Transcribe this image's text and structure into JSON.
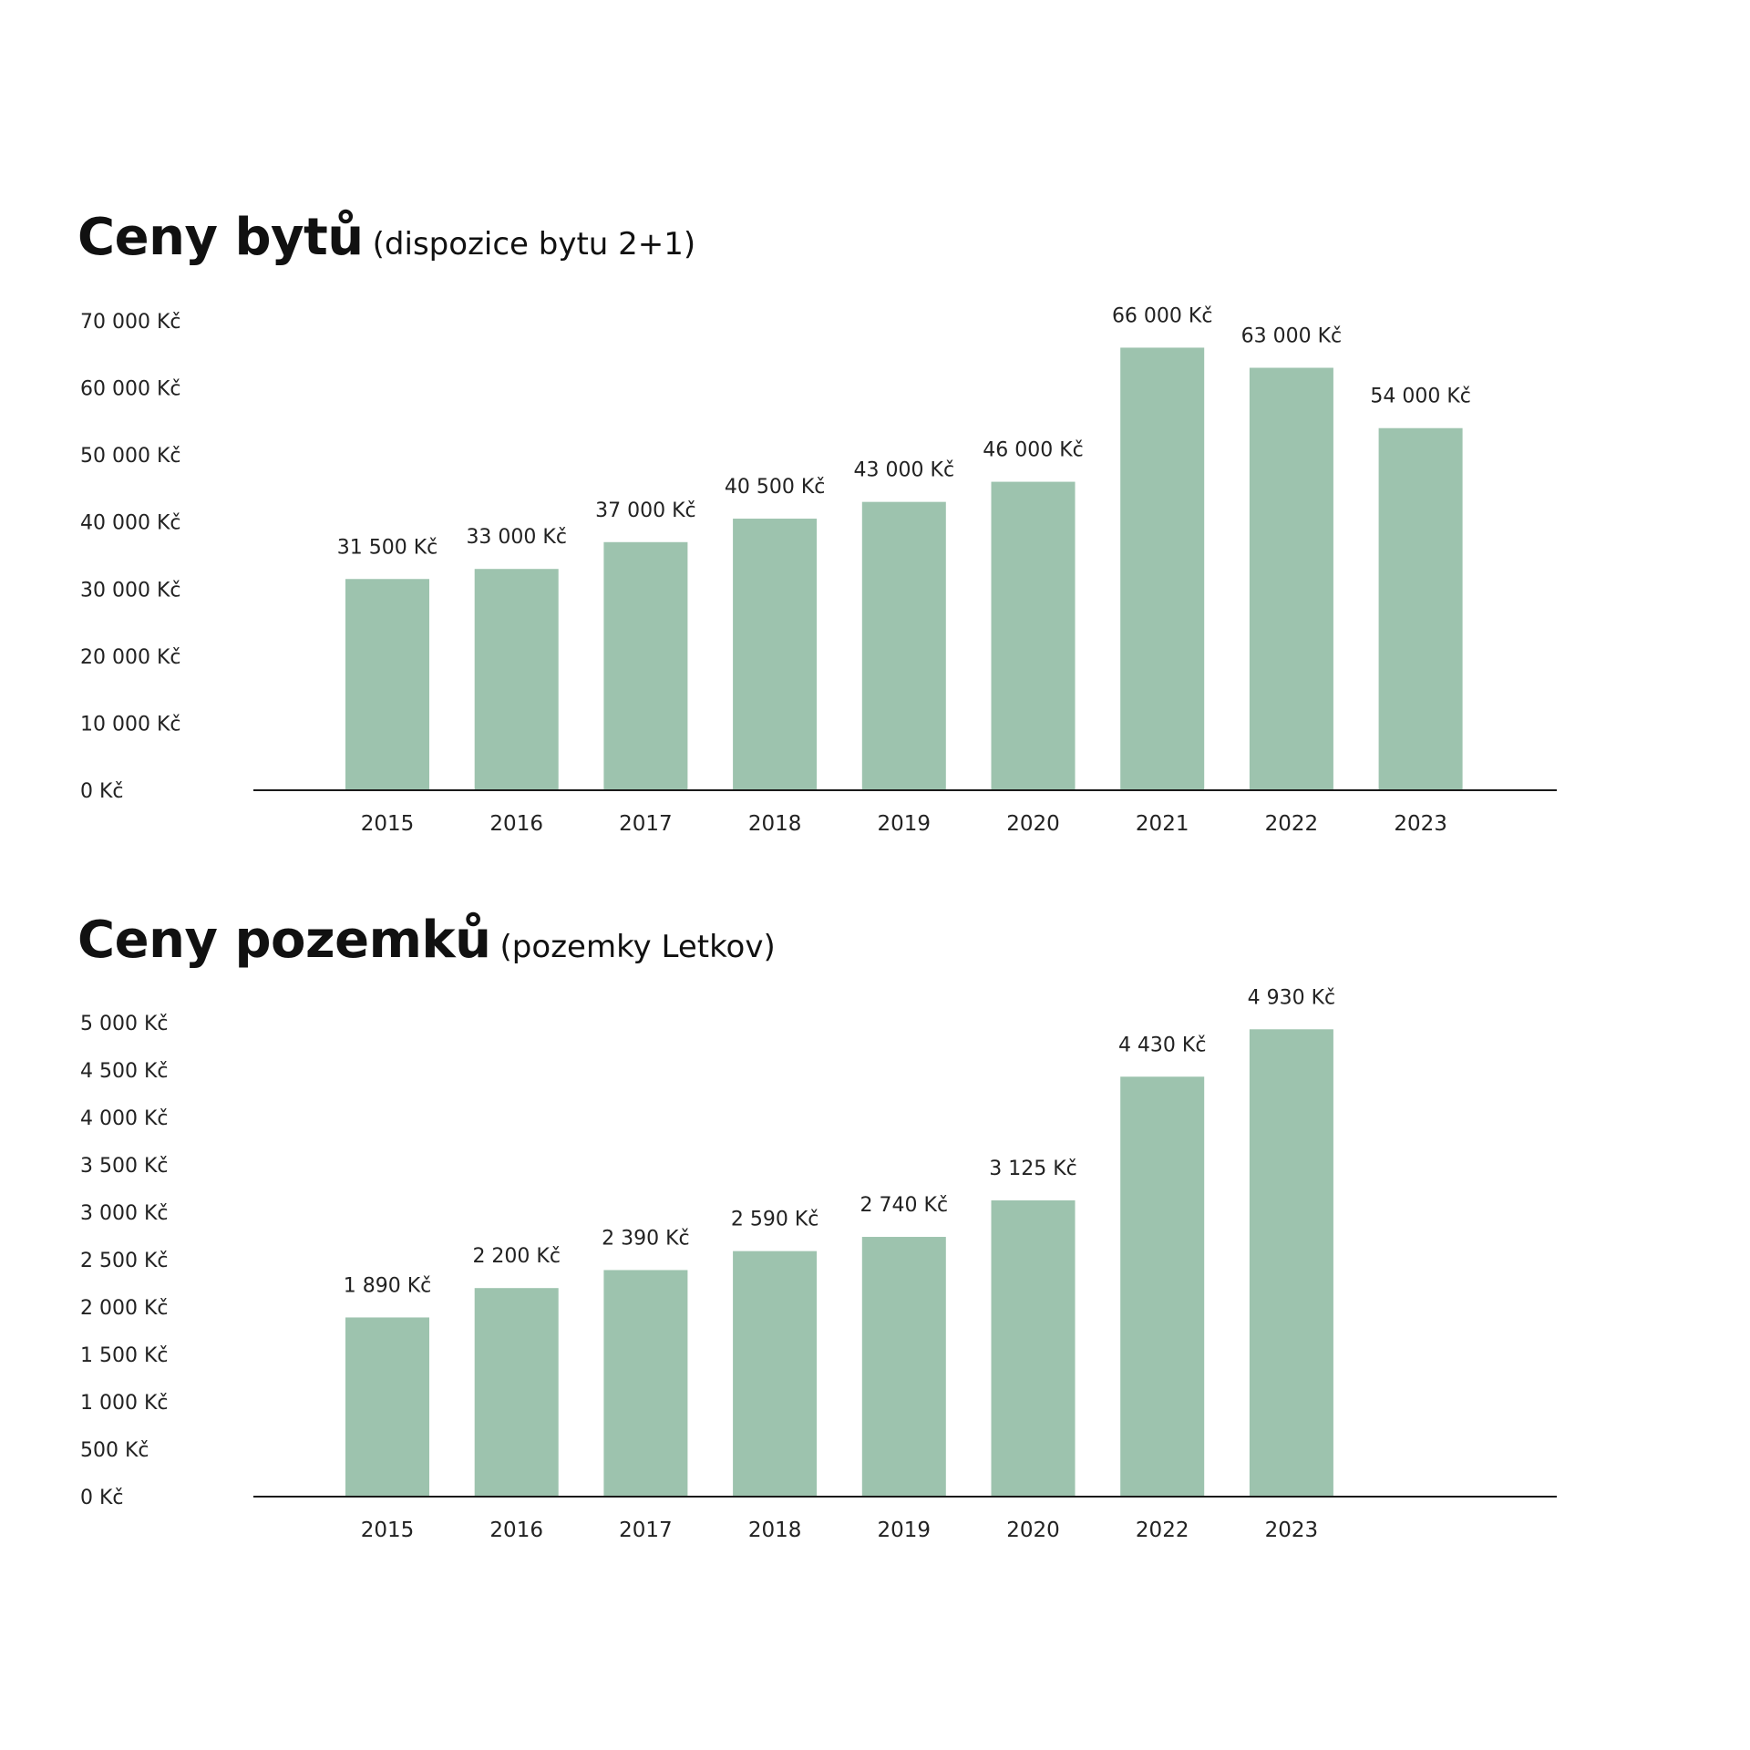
{
  "colors": {
    "bar": "#9dc3ae",
    "axis": "#1a1a1a",
    "text": "#222222"
  },
  "chart_data": [
    {
      "type": "bar",
      "title": "Ceny bytů",
      "subtitle": "(dispozice bytu 2+1)",
      "categories": [
        "2015",
        "2016",
        "2017",
        "2018",
        "2019",
        "2020",
        "2021",
        "2022",
        "2023"
      ],
      "values": [
        31500,
        33000,
        37000,
        40500,
        43000,
        46000,
        66000,
        63000,
        54000
      ],
      "value_labels": [
        "31 500 Kč",
        "33 000 Kč",
        "37 000 Kč",
        "40 500 Kč",
        "43 000 Kč",
        "46 000 Kč",
        "66 000 Kč",
        "63 000 Kč",
        "54 000 Kč"
      ],
      "y_ticks": [
        0,
        10000,
        20000,
        30000,
        40000,
        50000,
        60000,
        70000
      ],
      "y_tick_labels": [
        "0 Kč",
        "10 000 Kč",
        "20 000 Kč",
        "30 000 Kč",
        "40 000 Kč",
        "50 000 Kč",
        "60 000 Kč",
        "70 000 Kč"
      ],
      "ylim": [
        0,
        70000
      ],
      "xlabel": "",
      "ylabel": "",
      "grid": false,
      "legend": "none"
    },
    {
      "type": "bar",
      "title": "Ceny pozemků",
      "subtitle": "(pozemky Letkov)",
      "categories": [
        "2015",
        "2016",
        "2017",
        "2018",
        "2019",
        "2020",
        "2022",
        "2023"
      ],
      "values": [
        1890,
        2200,
        2390,
        2590,
        2740,
        3125,
        4430,
        4930
      ],
      "value_labels": [
        "1 890 Kč",
        "2 200 Kč",
        "2 390 Kč",
        "2 590 Kč",
        "2 740 Kč",
        "3 125 Kč",
        "4 430 Kč",
        "4 930 Kč"
      ],
      "y_ticks": [
        0,
        500,
        1000,
        1500,
        2000,
        2500,
        3000,
        3500,
        4000,
        4500,
        5000
      ],
      "y_tick_labels": [
        "0 Kč",
        "500 Kč",
        "1 000 Kč",
        "1 500 Kč",
        "2 000 Kč",
        "2 500 Kč",
        "3 000 Kč",
        "3 500 Kč",
        "4 000 Kč",
        "4 500 Kč",
        "5 000 Kč"
      ],
      "ylim": [
        0,
        5000
      ],
      "xlabel": "",
      "ylabel": "",
      "grid": false,
      "legend": "none"
    }
  ]
}
